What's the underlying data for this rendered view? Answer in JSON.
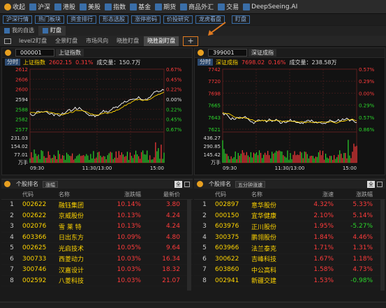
{
  "menubar": {
    "collapse": "收起",
    "items": [
      "沪深",
      "港股",
      "美股",
      "指数",
      "基金",
      "期货",
      "商品外汇",
      "交易",
      "DeepSeeing.AI"
    ]
  },
  "toolrow": [
    "沪深行情",
    "热门板块",
    "资金排行",
    "形态选股",
    "涨停密码",
    "价投研究",
    "龙虎看盘",
    "盯盘"
  ],
  "tabs1": [
    "我的自选",
    "盯盘"
  ],
  "tabs2": [
    "level2盯盘",
    "全景盯盘",
    "市场风向",
    "晓胜盯盘",
    "晓胜副盯盘"
  ],
  "plus": "+",
  "left": {
    "code": "000001",
    "name": "上证指数",
    "fenshi": "分时",
    "info_name": "上证指数",
    "price": "2602.15",
    "pct": "0.31%",
    "vol": "成交量：150.7万",
    "yl": [
      "2612",
      "2606",
      "2600",
      "2594",
      "2588",
      "2582",
      "2577"
    ],
    "yr": [
      "0.67%",
      "0.45%",
      "0.22%",
      "0.00%",
      "0.22%",
      "0.45%",
      "0.67%"
    ],
    "vl": [
      "231.03",
      "154.02",
      "77.01"
    ],
    "vunit": "万手",
    "xt": [
      "09:30",
      "11:30/13:00",
      "15:00"
    ]
  },
  "right": {
    "code": "399001",
    "name": "深证成指",
    "fenshi": "分时",
    "info_name": "深证成指",
    "price": "7698.02",
    "pct": "0.16%",
    "vol": "成交量：238.58万",
    "yl": [
      "7742",
      "7720",
      "7698",
      "7665",
      "7643",
      "7621"
    ],
    "yr": [
      "0.57%",
      "0.29%",
      "0.00%",
      "0.29%",
      "0.57%",
      "0.86%"
    ],
    "vl": [
      "436.27",
      "290.85",
      "145.42"
    ],
    "vunit": "万手",
    "xt": [
      "09:30",
      "11:30/13:00",
      "15:00"
    ]
  },
  "leftList": {
    "title": "个股排名",
    "sel": "涨幅",
    "all": "全",
    "cols": [
      "代码",
      "名称",
      "涨跌幅",
      "最新价"
    ],
    "rows": [
      [
        "1",
        "002622",
        "融钰集团",
        "10.14%",
        "3.80"
      ],
      [
        "2",
        "002622",
        "京威股份",
        "10.13%",
        "4.24"
      ],
      [
        "3",
        "002076",
        "雪 莱 特",
        "10.13%",
        "4.24"
      ],
      [
        "4",
        "603366",
        "日出东方",
        "10.09%",
        "4.80"
      ],
      [
        "5",
        "002625",
        "光启技术",
        "10.05%",
        "9.64"
      ],
      [
        "6",
        "300733",
        "西菱动力",
        "10.03%",
        "16.34"
      ],
      [
        "7",
        "300746",
        "汉嘉设计",
        "10.03%",
        "18.32"
      ],
      [
        "8",
        "002592",
        "八菱科技",
        "10.03%",
        "21.07"
      ]
    ]
  },
  "rightList": {
    "title": "个股排名",
    "sel": "五分钟涨速",
    "all": "全",
    "cols": [
      "代码",
      "名称",
      "涨速",
      "涨跌幅"
    ],
    "rows": [
      [
        "1",
        "002897",
        "意华股份",
        "4.32%",
        "5.33%"
      ],
      [
        "2",
        "000150",
        "宜华健康",
        "2.10%",
        "5.14%"
      ],
      [
        "3",
        "603976",
        "正川股份",
        "1.95%",
        "-5.27%"
      ],
      [
        "4",
        "300375",
        "鹏翎股份",
        "1.84%",
        "4.46%"
      ],
      [
        "5",
        "603966",
        "法兰泰克",
        "1.71%",
        "1.31%"
      ],
      [
        "6",
        "300622",
        "吉峰科技",
        "1.67%",
        "1.18%"
      ],
      [
        "7",
        "603860",
        "中公高科",
        "1.58%",
        "4.73%"
      ],
      [
        "8",
        "002941",
        "新疆交建",
        "1.53%",
        "-0.98%"
      ]
    ]
  }
}
